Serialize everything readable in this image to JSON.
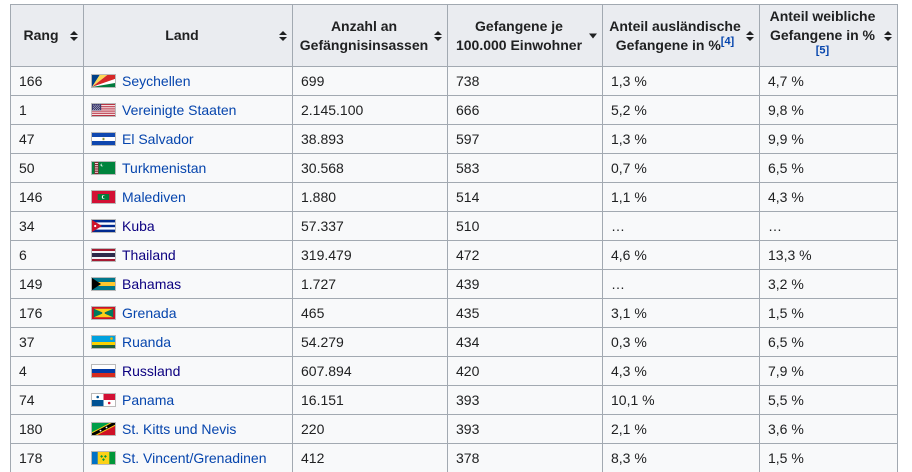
{
  "table": {
    "columns": [
      {
        "id": "rang",
        "label": "Rang",
        "sort": "both"
      },
      {
        "id": "land",
        "label": "Land",
        "sort": "both"
      },
      {
        "id": "insassen",
        "label": "Anzahl an Gefängnisinsassen",
        "sort": "both"
      },
      {
        "id": "je100k",
        "label": "Gefangene je 100.000 Einwohner",
        "sort": "desc"
      },
      {
        "id": "auslaendisch",
        "label": "Anteil ausländische Gefangene in %",
        "ref": "[4]",
        "sort": "both"
      },
      {
        "id": "weiblich",
        "label": "Anteil weibliche Gefangene in %",
        "ref": "[5]",
        "sort": "both"
      }
    ],
    "rows": [
      {
        "rang": "166",
        "land": "Seychellen",
        "flag": "seychelles",
        "visited": false,
        "insassen": "699",
        "je100k": "738",
        "auslaendisch": "1,3 %",
        "weiblich": "4,7 %"
      },
      {
        "rang": "1",
        "land": "Vereinigte Staaten",
        "flag": "usa",
        "visited": false,
        "insassen": "2.145.100",
        "je100k": "666",
        "auslaendisch": "5,2 %",
        "weiblich": "9,8 %"
      },
      {
        "rang": "47",
        "land": "El Salvador",
        "flag": "el-salvador",
        "visited": false,
        "insassen": "38.893",
        "je100k": "597",
        "auslaendisch": "1,3 %",
        "weiblich": "9,9 %"
      },
      {
        "rang": "50",
        "land": "Turkmenistan",
        "flag": "turkmenistan",
        "visited": false,
        "insassen": "30.568",
        "je100k": "583",
        "auslaendisch": "0,7 %",
        "weiblich": "6,5 %"
      },
      {
        "rang": "146",
        "land": "Malediven",
        "flag": "maldives",
        "visited": false,
        "insassen": "1.880",
        "je100k": "514",
        "auslaendisch": "1,1 %",
        "weiblich": "4,3 %"
      },
      {
        "rang": "34",
        "land": "Kuba",
        "flag": "cuba",
        "visited": true,
        "insassen": "57.337",
        "je100k": "510",
        "auslaendisch": "…",
        "weiblich": "…"
      },
      {
        "rang": "6",
        "land": "Thailand",
        "flag": "thailand",
        "visited": true,
        "insassen": "319.479",
        "je100k": "472",
        "auslaendisch": "4,6 %",
        "weiblich": "13,3 %"
      },
      {
        "rang": "149",
        "land": "Bahamas",
        "flag": "bahamas",
        "visited": true,
        "insassen": "1.727",
        "je100k": "439",
        "auslaendisch": "…",
        "weiblich": "3,2 %"
      },
      {
        "rang": "176",
        "land": "Grenada",
        "flag": "grenada",
        "visited": false,
        "insassen": "465",
        "je100k": "435",
        "auslaendisch": "3,1 %",
        "weiblich": "1,5 %"
      },
      {
        "rang": "37",
        "land": "Ruanda",
        "flag": "rwanda",
        "visited": false,
        "insassen": "54.279",
        "je100k": "434",
        "auslaendisch": "0,3 %",
        "weiblich": "6,5 %"
      },
      {
        "rang": "4",
        "land": "Russland",
        "flag": "russia",
        "visited": true,
        "insassen": "607.894",
        "je100k": "420",
        "auslaendisch": "4,3 %",
        "weiblich": "7,9 %"
      },
      {
        "rang": "74",
        "land": "Panama",
        "flag": "panama",
        "visited": false,
        "insassen": "16.151",
        "je100k": "393",
        "auslaendisch": "10,1 %",
        "weiblich": "5,5 %"
      },
      {
        "rang": "180",
        "land": "St. Kitts und Nevis",
        "flag": "st-kitts-nevis",
        "visited": false,
        "insassen": "220",
        "je100k": "393",
        "auslaendisch": "2,1 %",
        "weiblich": "3,6 %"
      },
      {
        "rang": "178",
        "land": "St. Vincent/Grenadinen",
        "flag": "st-vincent-grenadines",
        "visited": false,
        "insassen": "412",
        "je100k": "378",
        "auslaendisch": "8,3 %",
        "weiblich": "1,5 %"
      }
    ]
  },
  "colors": {
    "header_bg": "#eaecf0",
    "table_bg": "#f8f9fa",
    "border": "#a2a9b1",
    "text": "#202122",
    "link": "#0645ad",
    "visited_link": "#0b0080"
  }
}
